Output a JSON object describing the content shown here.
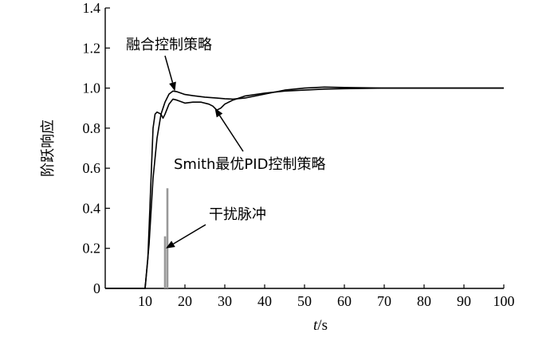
{
  "chart_data": {
    "type": "line",
    "xlabel": "t/s",
    "ylabel": "阶跃响应",
    "xlim": [
      0,
      100
    ],
    "ylim": [
      0,
      1.4
    ],
    "xticks": [
      10,
      20,
      30,
      40,
      50,
      60,
      70,
      80,
      90,
      100
    ],
    "yticks": [
      "0",
      "0.2",
      "0.4",
      "0.6",
      "0.8",
      "1.0",
      "1.2",
      "1.4"
    ],
    "grid": false,
    "series": [
      {
        "name": "融合控制策略",
        "points": [
          [
            0,
            0
          ],
          [
            10,
            0
          ],
          [
            11,
            0.22
          ],
          [
            12,
            0.55
          ],
          [
            13,
            0.75
          ],
          [
            14,
            0.87
          ],
          [
            15,
            0.93
          ],
          [
            16,
            0.97
          ],
          [
            17,
            0.985
          ],
          [
            18,
            0.982
          ],
          [
            19,
            0.975
          ],
          [
            20,
            0.968
          ],
          [
            22,
            0.962
          ],
          [
            25,
            0.955
          ],
          [
            28,
            0.95
          ],
          [
            30,
            0.947
          ],
          [
            32,
            0.945
          ],
          [
            35,
            0.95
          ],
          [
            40,
            0.97
          ],
          [
            45,
            0.99
          ],
          [
            50,
            1.0
          ],
          [
            55,
            1.005
          ],
          [
            60,
            1.003
          ],
          [
            70,
            1.0
          ],
          [
            80,
            1.0
          ],
          [
            90,
            1.0
          ],
          [
            100,
            1.0
          ]
        ]
      },
      {
        "name": "Smith最优PID控制策略",
        "points": [
          [
            0,
            0
          ],
          [
            10,
            0
          ],
          [
            10.7,
            0.15
          ],
          [
            11.5,
            0.55
          ],
          [
            12,
            0.8
          ],
          [
            12.5,
            0.87
          ],
          [
            13,
            0.88
          ],
          [
            14,
            0.87
          ],
          [
            14.5,
            0.85
          ],
          [
            15,
            0.87
          ],
          [
            16,
            0.92
          ],
          [
            17,
            0.945
          ],
          [
            18,
            0.94
          ],
          [
            20,
            0.925
          ],
          [
            22,
            0.93
          ],
          [
            24,
            0.93
          ],
          [
            26,
            0.92
          ],
          [
            27,
            0.91
          ],
          [
            28,
            0.89
          ],
          [
            29,
            0.9
          ],
          [
            30,
            0.92
          ],
          [
            32,
            0.94
          ],
          [
            35,
            0.96
          ],
          [
            40,
            0.975
          ],
          [
            45,
            0.985
          ],
          [
            50,
            0.99
          ],
          [
            55,
            0.995
          ],
          [
            60,
            0.997
          ],
          [
            70,
            1.0
          ],
          [
            80,
            1.0
          ],
          [
            90,
            1.0
          ],
          [
            100,
            1.0
          ]
        ]
      }
    ],
    "pulses": [
      {
        "x": 15.6,
        "y": 0.5
      },
      {
        "x": 15.0,
        "y": 0.26
      }
    ],
    "annotations": [
      {
        "text": "融合控制策略",
        "target": [
          17.5,
          0.985
        ]
      },
      {
        "text": "Smith最优PID控制策略",
        "target": [
          27.5,
          0.9
        ]
      },
      {
        "text": "干扰脉冲",
        "target": [
          15.2,
          0.2
        ]
      }
    ]
  }
}
